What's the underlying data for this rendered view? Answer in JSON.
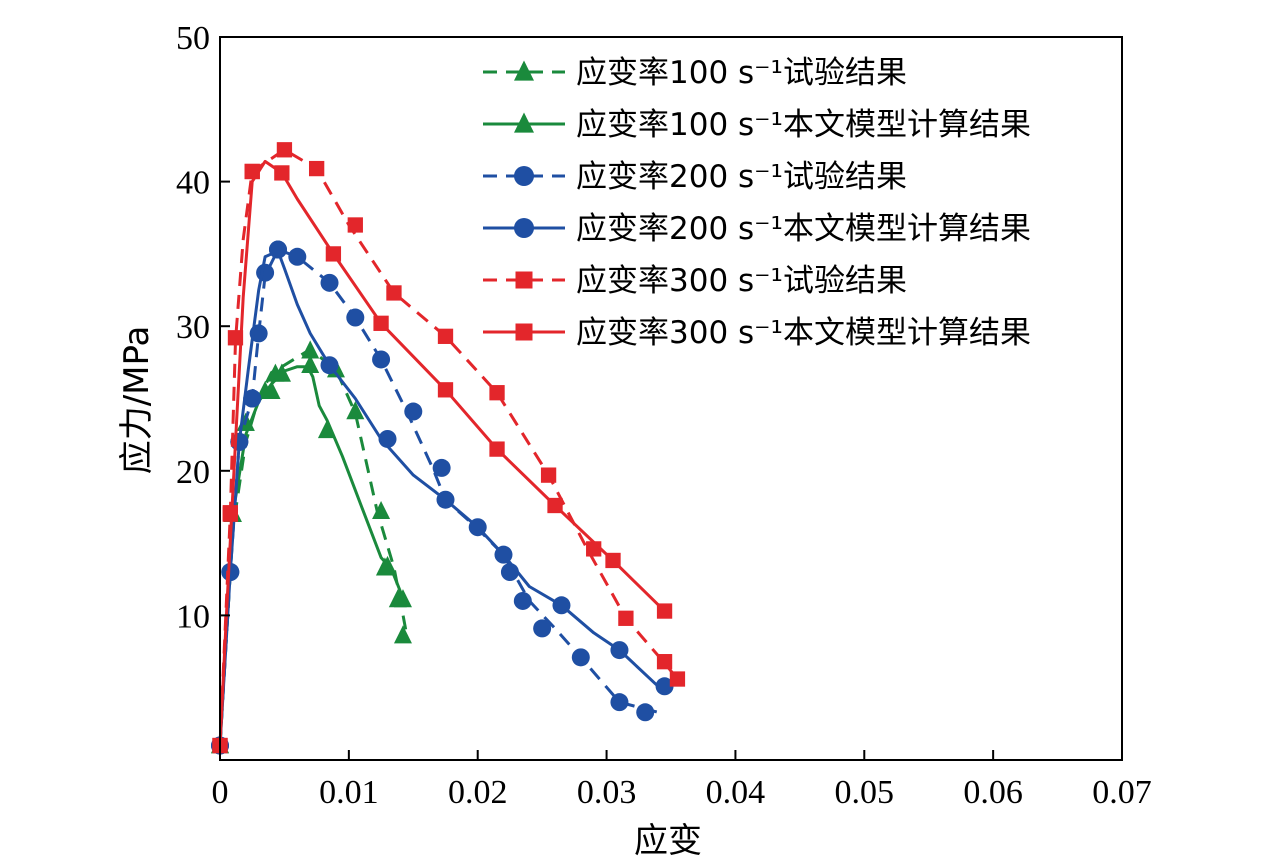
{
  "chart_data": {
    "type": "line",
    "xlabel": "应变",
    "ylabel": "应力/MPa",
    "xlim": [
      0,
      0.07
    ],
    "ylim": [
      0,
      50
    ],
    "x_ticks": [
      0,
      0.01,
      0.02,
      0.03,
      0.04,
      0.05,
      0.06,
      0.07
    ],
    "x_tick_labels": [
      "0",
      "0.01",
      "0.02",
      "0.03",
      "0.04",
      "0.05",
      "0.06",
      "0.07"
    ],
    "y_ticks": [
      10,
      20,
      30,
      40,
      50
    ],
    "y_tick_labels": [
      "10",
      "20",
      "30",
      "40",
      "50"
    ],
    "grid": false,
    "legend_position": "top-right",
    "series": [
      {
        "name": "应变率100 s⁻¹试验结果",
        "color": "#1a8a3c",
        "dash": true,
        "marker": "triangle",
        "line": [
          [
            0,
            1
          ],
          [
            0.001,
            16
          ],
          [
            0.002,
            22
          ],
          [
            0.003,
            25
          ],
          [
            0.004,
            26.8
          ],
          [
            0.005,
            27.3
          ],
          [
            0.007,
            28.4
          ],
          [
            0.009,
            27
          ],
          [
            0.0105,
            24
          ],
          [
            0.0115,
            20
          ],
          [
            0.0122,
            17.2
          ],
          [
            0.0135,
            13.3
          ],
          [
            0.014,
            11
          ],
          [
            0.0145,
            8.6
          ]
        ],
        "markers": [
          [
            0,
            1
          ],
          [
            0.001,
            17
          ],
          [
            0.002,
            23.3
          ],
          [
            0.0035,
            25.5
          ],
          [
            0.0043,
            26.7
          ],
          [
            0.0048,
            26.7
          ],
          [
            0.007,
            28.3
          ],
          [
            0.009,
            27
          ],
          [
            0.0105,
            24.1
          ],
          [
            0.0125,
            17.2
          ],
          [
            0.013,
            13.4
          ],
          [
            0.0138,
            11.1
          ],
          [
            0.0142,
            8.6
          ]
        ]
      },
      {
        "name": "应变率100 s⁻¹本文模型计算结果",
        "color": "#1a8a3c",
        "dash": false,
        "marker": "triangle",
        "line": [
          [
            0,
            1
          ],
          [
            0.001,
            17
          ],
          [
            0.002,
            22.5
          ],
          [
            0.003,
            24.8
          ],
          [
            0.004,
            26
          ],
          [
            0.005,
            26.9
          ],
          [
            0.006,
            27.2
          ],
          [
            0.0068,
            27.2
          ],
          [
            0.0072,
            26.5
          ],
          [
            0.0077,
            24.5
          ],
          [
            0.0083,
            23.5
          ],
          [
            0.0095,
            21
          ],
          [
            0.011,
            17.5
          ],
          [
            0.0125,
            14
          ],
          [
            0.0133,
            13.2
          ],
          [
            0.0142,
            11.2
          ]
        ],
        "markers": [
          [
            0,
            1
          ],
          [
            0.001,
            17
          ],
          [
            0.002,
            23.3
          ],
          [
            0.004,
            25.5
          ],
          [
            0.0048,
            26.7
          ],
          [
            0.007,
            27.3
          ],
          [
            0.0083,
            22.8
          ],
          [
            0.0128,
            13.3
          ],
          [
            0.0142,
            11.1
          ]
        ]
      },
      {
        "name": "应变率200 s⁻¹试验结果",
        "color": "#1f4fa3",
        "dash": true,
        "marker": "circle",
        "line": [
          [
            0,
            1
          ],
          [
            0.0008,
            13
          ],
          [
            0.0015,
            22
          ],
          [
            0.0025,
            25
          ],
          [
            0.003,
            29.5
          ],
          [
            0.0035,
            33.5
          ],
          [
            0.0045,
            35.3
          ],
          [
            0.006,
            34.8
          ],
          [
            0.0085,
            33
          ],
          [
            0.0105,
            30.6
          ],
          [
            0.0125,
            27.7
          ],
          [
            0.0145,
            24.1
          ],
          [
            0.0165,
            20.2
          ],
          [
            0.0175,
            18
          ],
          [
            0.02,
            16
          ],
          [
            0.022,
            14.2
          ],
          [
            0.024,
            11
          ],
          [
            0.026,
            9.1
          ],
          [
            0.028,
            7.1
          ],
          [
            0.031,
            4
          ],
          [
            0.034,
            3.3
          ]
        ],
        "markers": [
          [
            0,
            1
          ],
          [
            0.0008,
            13
          ],
          [
            0.0015,
            22
          ],
          [
            0.0025,
            25
          ],
          [
            0.003,
            29.5
          ],
          [
            0.0035,
            33.7
          ],
          [
            0.0045,
            35.3
          ],
          [
            0.006,
            34.8
          ],
          [
            0.0085,
            33
          ],
          [
            0.0105,
            30.6
          ],
          [
            0.0125,
            27.7
          ],
          [
            0.015,
            24.1
          ],
          [
            0.0172,
            20.2
          ],
          [
            0.0225,
            13.0
          ],
          [
            0.0235,
            11
          ],
          [
            0.025,
            9.1
          ],
          [
            0.028,
            7.1
          ],
          [
            0.031,
            4
          ],
          [
            0.033,
            3.3
          ]
        ]
      },
      {
        "name": "应变率200 s⁻¹本文模型计算结果",
        "color": "#1f4fa3",
        "dash": false,
        "marker": "circle",
        "line": [
          [
            0,
            1
          ],
          [
            0.0008,
            13
          ],
          [
            0.0015,
            22
          ],
          [
            0.0022,
            27
          ],
          [
            0.003,
            32.5
          ],
          [
            0.0035,
            34.8
          ],
          [
            0.0045,
            35.2
          ],
          [
            0.005,
            34
          ],
          [
            0.006,
            31.5
          ],
          [
            0.007,
            29.5
          ],
          [
            0.0085,
            27.3
          ],
          [
            0.0105,
            25
          ],
          [
            0.0125,
            22.2
          ],
          [
            0.015,
            19.7
          ],
          [
            0.0175,
            18
          ],
          [
            0.02,
            16.1
          ],
          [
            0.022,
            14.2
          ],
          [
            0.024,
            12
          ],
          [
            0.0265,
            10.7
          ],
          [
            0.029,
            8.8
          ],
          [
            0.031,
            7.6
          ],
          [
            0.034,
            5.1
          ]
        ],
        "markers": [
          [
            0,
            1
          ],
          [
            0.0008,
            13
          ],
          [
            0.0015,
            22
          ],
          [
            0.0025,
            25
          ],
          [
            0.0045,
            35.3
          ],
          [
            0.0085,
            27.3
          ],
          [
            0.013,
            22.2
          ],
          [
            0.0175,
            18
          ],
          [
            0.02,
            16.1
          ],
          [
            0.022,
            14.2
          ],
          [
            0.0265,
            10.7
          ],
          [
            0.031,
            7.6
          ],
          [
            0.0345,
            5.1
          ]
        ]
      },
      {
        "name": "应变率300 s⁻¹试验结果",
        "color": "#e3262b",
        "dash": true,
        "marker": "square",
        "line": [
          [
            0,
            1
          ],
          [
            0.0008,
            17
          ],
          [
            0.0012,
            29
          ],
          [
            0.0018,
            36
          ],
          [
            0.0025,
            40.7
          ],
          [
            0.005,
            42.2
          ],
          [
            0.0075,
            40.9
          ],
          [
            0.01,
            37
          ],
          [
            0.0135,
            32.3
          ],
          [
            0.0175,
            29.3
          ],
          [
            0.0215,
            25.4
          ],
          [
            0.0255,
            19.7
          ],
          [
            0.0285,
            14.6
          ],
          [
            0.0315,
            9.8
          ],
          [
            0.0345,
            6.7
          ],
          [
            0.0355,
            5.6
          ]
        ],
        "markers": [
          [
            0,
            1
          ],
          [
            0.0008,
            17
          ],
          [
            0.0012,
            29.2
          ],
          [
            0.0025,
            40.7
          ],
          [
            0.005,
            42.2
          ],
          [
            0.0075,
            40.9
          ],
          [
            0.0105,
            37
          ],
          [
            0.0135,
            32.3
          ],
          [
            0.0175,
            29.3
          ],
          [
            0.0215,
            25.4
          ],
          [
            0.0255,
            19.7
          ],
          [
            0.029,
            14.6
          ],
          [
            0.0315,
            9.8
          ],
          [
            0.0345,
            6.8
          ],
          [
            0.0355,
            5.6
          ]
        ]
      },
      {
        "name": "应变率300 s⁻¹本文模型计算结果",
        "color": "#e3262b",
        "dash": false,
        "marker": "square",
        "line": [
          [
            0,
            1
          ],
          [
            0.0005,
            10
          ],
          [
            0.0012,
            22
          ],
          [
            0.0018,
            32
          ],
          [
            0.0025,
            40
          ],
          [
            0.0035,
            41.4
          ],
          [
            0.0048,
            40.6
          ],
          [
            0.006,
            38.8
          ],
          [
            0.0088,
            35
          ],
          [
            0.0125,
            30.2
          ],
          [
            0.0175,
            25.6
          ],
          [
            0.0215,
            21.5
          ],
          [
            0.026,
            17.6
          ],
          [
            0.0305,
            13.8
          ],
          [
            0.0345,
            10.3
          ]
        ],
        "markers": [
          [
            0,
            1
          ],
          [
            0.0008,
            17.1
          ],
          [
            0.0025,
            40.7
          ],
          [
            0.0048,
            40.6
          ],
          [
            0.0088,
            35
          ],
          [
            0.0125,
            30.2
          ],
          [
            0.0175,
            25.6
          ],
          [
            0.0215,
            21.5
          ],
          [
            0.026,
            17.6
          ],
          [
            0.0305,
            13.8
          ],
          [
            0.0345,
            10.3
          ]
        ]
      }
    ]
  }
}
